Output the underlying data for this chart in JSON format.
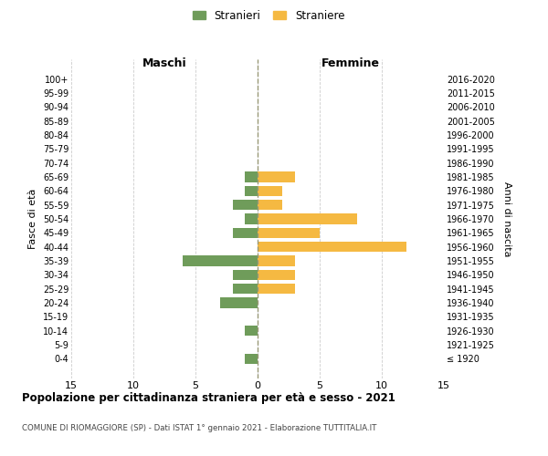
{
  "age_groups": [
    "100+",
    "95-99",
    "90-94",
    "85-89",
    "80-84",
    "75-79",
    "70-74",
    "65-69",
    "60-64",
    "55-59",
    "50-54",
    "45-49",
    "40-44",
    "35-39",
    "30-34",
    "25-29",
    "20-24",
    "15-19",
    "10-14",
    "5-9",
    "0-4"
  ],
  "birth_years": [
    "≤ 1920",
    "1921-1925",
    "1926-1930",
    "1931-1935",
    "1936-1940",
    "1941-1945",
    "1946-1950",
    "1951-1955",
    "1956-1960",
    "1961-1965",
    "1966-1970",
    "1971-1975",
    "1976-1980",
    "1981-1985",
    "1986-1990",
    "1991-1995",
    "1996-2000",
    "2001-2005",
    "2006-2010",
    "2011-2015",
    "2016-2020"
  ],
  "maschi": [
    0,
    0,
    0,
    0,
    0,
    0,
    0,
    1,
    1,
    2,
    1,
    2,
    0,
    6,
    2,
    2,
    3,
    0,
    1,
    0,
    1
  ],
  "femmine": [
    0,
    0,
    0,
    0,
    0,
    0,
    0,
    3,
    2,
    2,
    8,
    5,
    12,
    3,
    3,
    3,
    0,
    0,
    0,
    0,
    0
  ],
  "color_maschi": "#6f9c5a",
  "color_femmine": "#f5b942",
  "xlim": 15,
  "title": "Popolazione per cittadinanza straniera per età e sesso - 2021",
  "subtitle": "COMUNE DI RIOMAGGIORE (SP) - Dati ISTAT 1° gennaio 2021 - Elaborazione TUTTITALIA.IT",
  "ylabel_left": "Fasce di età",
  "ylabel_right": "Anni di nascita",
  "label_maschi": "Stranieri",
  "label_femmine": "Straniere",
  "header_left": "Maschi",
  "header_right": "Femmine",
  "background_color": "#ffffff",
  "grid_color": "#cccccc"
}
